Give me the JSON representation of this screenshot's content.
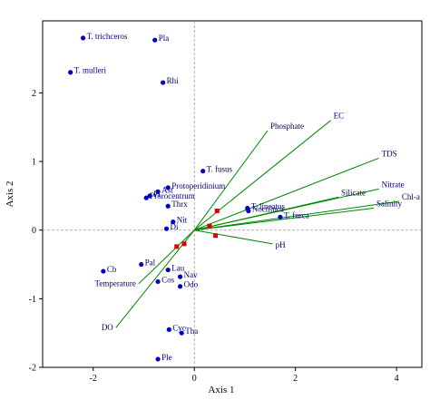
{
  "chart_data": {
    "type": "scatter",
    "title": "",
    "xlabel": "Axis 1",
    "ylabel": "Axis 2",
    "xlim": [
      -3,
      4.5
    ],
    "ylim": [
      -2,
      3.05
    ],
    "xticks": [
      -2,
      0,
      2,
      4
    ],
    "yticks": [
      -2,
      -1,
      0,
      1,
      2
    ],
    "xtick_labels": [
      "-2",
      "0",
      "2",
      "4"
    ],
    "ytick_labels": [
      "-2",
      "-1",
      "0",
      "1",
      "2"
    ],
    "zero_lines": true,
    "grid": false,
    "species": [
      {
        "label": "T. trichceros",
        "x": -2.2,
        "y": 2.8
      },
      {
        "label": "Pla",
        "x": -0.78,
        "y": 2.77
      },
      {
        "label": "T. mulleri",
        "x": -2.45,
        "y": 2.3
      },
      {
        "label": "Rhi",
        "x": -0.62,
        "y": 2.15
      },
      {
        "label": "T. fusus",
        "x": 0.17,
        "y": 0.86
      },
      {
        "label": "Protoperidinium",
        "x": -0.52,
        "y": 0.62
      },
      {
        "label": "Ast",
        "x": -0.72,
        "y": 0.56
      },
      {
        "label": "Pl",
        "x": -0.88,
        "y": 0.5
      },
      {
        "label": "Prorocentrum",
        "x": -0.95,
        "y": 0.47
      },
      {
        "label": "Thrx",
        "x": -0.52,
        "y": 0.35
      },
      {
        "label": "T. lineatus",
        "x": 1.05,
        "y": 0.32
      },
      {
        "label": "Noctiluca",
        "x": 1.07,
        "y": 0.28
      },
      {
        "label": "T. furca",
        "x": 1.7,
        "y": 0.19
      },
      {
        "label": "Nit",
        "x": -0.42,
        "y": 0.12
      },
      {
        "label": "Di",
        "x": -0.55,
        "y": 0.02
      },
      {
        "label": "Pal",
        "x": -1.05,
        "y": -0.5
      },
      {
        "label": "Cb",
        "x": -1.8,
        "y": -0.6
      },
      {
        "label": "Lau",
        "x": -0.52,
        "y": -0.58
      },
      {
        "label": "Nav",
        "x": -0.28,
        "y": -0.68
      },
      {
        "label": "Cos",
        "x": -0.72,
        "y": -0.75
      },
      {
        "label": "Odo",
        "x": -0.28,
        "y": -0.82
      },
      {
        "label": "Cyc",
        "x": -0.5,
        "y": -1.45
      },
      {
        "label": "Tha",
        "x": -0.25,
        "y": -1.5
      },
      {
        "label": "Ple",
        "x": -0.72,
        "y": -1.88
      }
    ],
    "sites": [
      {
        "x": -0.2,
        "y": -0.2
      },
      {
        "x": -0.35,
        "y": -0.24
      },
      {
        "x": 0.42,
        "y": -0.08
      },
      {
        "x": 0.3,
        "y": 0.06
      },
      {
        "x": 0.45,
        "y": 0.28
      }
    ],
    "environmental_vectors": [
      {
        "label": "EC",
        "x": 2.7,
        "y": 1.6
      },
      {
        "label": "Phosphate",
        "x": 1.45,
        "y": 1.45
      },
      {
        "label": "TDS",
        "x": 3.65,
        "y": 1.05
      },
      {
        "label": "Nitrate",
        "x": 3.65,
        "y": 0.6
      },
      {
        "label": "Silicate",
        "x": 2.85,
        "y": 0.48
      },
      {
        "label": "Chl-a",
        "x": 4.05,
        "y": 0.42
      },
      {
        "label": "Salinity",
        "x": 3.55,
        "y": 0.32
      },
      {
        "label": "pH",
        "x": 1.55,
        "y": -0.2
      },
      {
        "label": "Temperature",
        "x": -1.1,
        "y": -0.78
      },
      {
        "label": "DO",
        "x": -1.55,
        "y": -1.42
      }
    ],
    "colors": {
      "species_point": "#0000cc",
      "site_point": "#dd0000",
      "vector": "#008800",
      "label": "#00007f",
      "axis": "#000000",
      "zero_line": "#999999"
    }
  }
}
